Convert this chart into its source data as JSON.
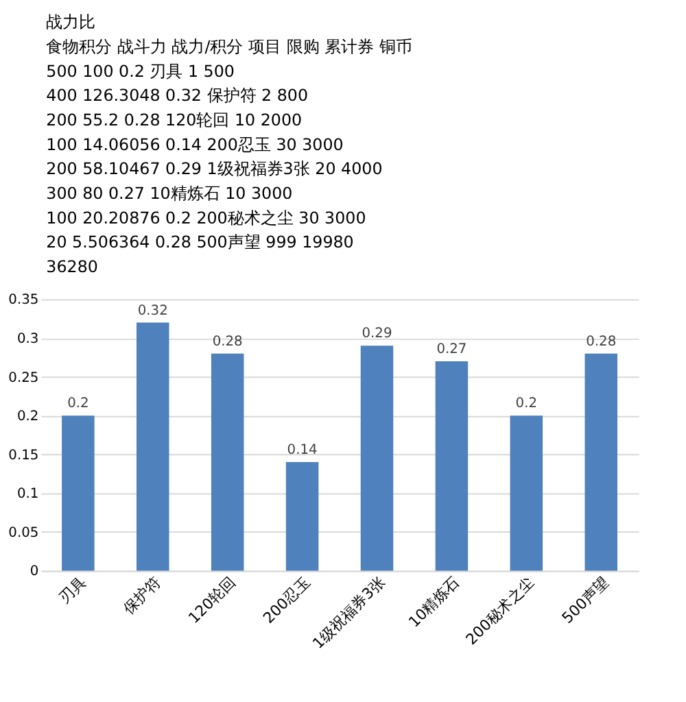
{
  "chart_data": {
    "type": "bar",
    "categories": [
      "刃具",
      "保护符",
      "120轮回",
      "200忍玉",
      "1级祝福券3张",
      "10精炼石",
      "200秘术之尘",
      "500声望"
    ],
    "values": [
      0.2,
      0.32,
      0.28,
      0.14,
      0.29,
      0.27,
      0.2,
      0.28
    ],
    "color": "#4f81bd",
    "ylim": [
      0,
      0.35
    ],
    "yticks": [
      0,
      0.05,
      0.1,
      0.15,
      0.2,
      0.25,
      0.3,
      0.35
    ],
    "grid": "y",
    "data_labels": true,
    "annotations": [
      "战力比",
      "食物积分  战斗力  战力/积分  项目  限购  累计券  铜币",
      "500  100  0.2  刃具  1  500",
      "400  126.3048  0.32  保护符  2  800",
      "200  55.2  0.28  120轮回  10  2000",
      "100  14.06056  0.14  200忍玉  30  3000",
      "200  58.10467  0.29  1级祝福券3张  20  4000",
      "300  80  0.27  10精炼石  10  3000",
      "100  20.20876  0.2  200秘术之尘  30  3000",
      "20  5.506364  0.28  500声望  999  19980",
      "36280"
    ]
  }
}
